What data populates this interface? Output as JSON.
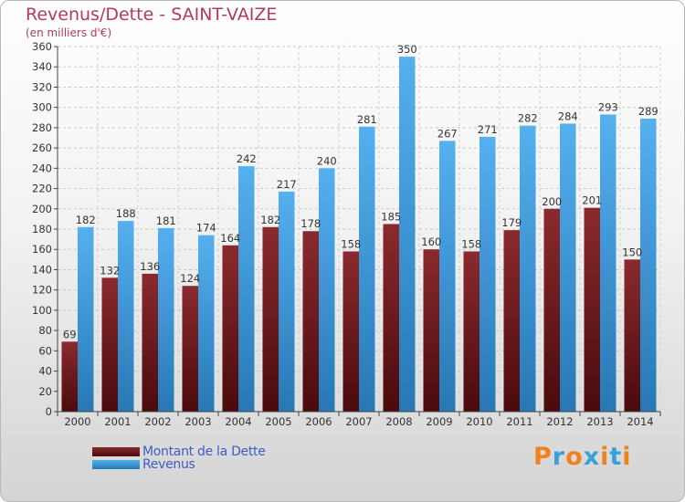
{
  "title": "Revenus/Dette - SAINT-VAIZE",
  "subtitle": "(en milliers d'€)",
  "legend": {
    "debt_label": "Montant de la Dette",
    "revenue_label": "Revenus"
  },
  "logo": {
    "text": "Proxiti"
  },
  "colors": {
    "debt": "#6b1a1d",
    "revenue": "#3498db",
    "title": "#b23a5c",
    "legend_text": "#3d5cc8"
  },
  "chart_data": {
    "type": "bar",
    "categories": [
      "2000",
      "2001",
      "2002",
      "2003",
      "2004",
      "2005",
      "2006",
      "2007",
      "2008",
      "2009",
      "2010",
      "2011",
      "2012",
      "2013",
      "2014"
    ],
    "series": [
      {
        "name": "Montant de la Dette",
        "values": [
          69,
          132,
          136,
          124,
          164,
          182,
          178,
          158,
          185,
          160,
          158,
          179,
          200,
          201,
          150
        ]
      },
      {
        "name": "Revenus",
        "values": [
          182,
          188,
          181,
          174,
          242,
          217,
          240,
          281,
          350,
          267,
          271,
          282,
          284,
          293,
          289
        ]
      }
    ],
    "title": "Revenus/Dette - SAINT-VAIZE",
    "ylim": [
      0,
      360
    ],
    "yticks": [
      0,
      20,
      40,
      60,
      80,
      100,
      120,
      140,
      160,
      180,
      200,
      220,
      240,
      260,
      280,
      300,
      320,
      340,
      360
    ],
    "grid": true,
    "legend_position": "bottom-left"
  }
}
